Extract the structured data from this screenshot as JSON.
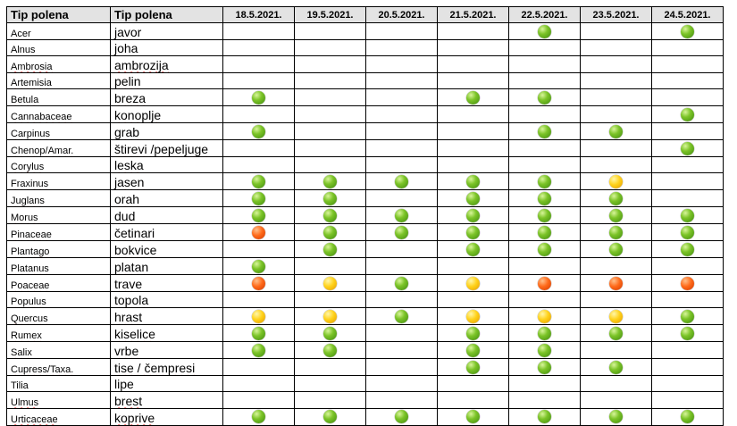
{
  "header": {
    "col_latin": "Tip polena",
    "col_local": "Tip polena",
    "dates": [
      "18.5.2021.",
      "19.5.2021.",
      "20.5.2021.",
      "21.5.2021.",
      "22.5.2021.",
      "23.5.2021.",
      "24.5.2021."
    ]
  },
  "levels": {
    "green": "#7cc428",
    "yellow": "#ffd21a",
    "orange": "#ff6a1a"
  },
  "rows": [
    {
      "latin": "Acer",
      "local": "javor",
      "levels": [
        "",
        "",
        "",
        "",
        "green",
        "",
        "green"
      ]
    },
    {
      "latin": "Alnus",
      "local": "joha",
      "levels": [
        "",
        "",
        "",
        "",
        "",
        "",
        ""
      ]
    },
    {
      "latin": "Ambrosia",
      "local": "ambrozija",
      "levels": [
        "",
        "",
        "",
        "",
        "",
        "",
        ""
      ]
    },
    {
      "latin": "Artemisia",
      "local": "pelin",
      "levels": [
        "",
        "",
        "",
        "",
        "",
        "",
        ""
      ]
    },
    {
      "latin": "Betula",
      "local": "breza",
      "levels": [
        "green",
        "",
        "",
        "green",
        "green",
        "",
        ""
      ]
    },
    {
      "latin": "Cannabaceae",
      "local": "konoplje",
      "levels": [
        "",
        "",
        "",
        "",
        "",
        "",
        "green"
      ]
    },
    {
      "latin": "Carpinus",
      "local": "grab",
      "levels": [
        "green",
        "",
        "",
        "",
        "green",
        "green",
        ""
      ]
    },
    {
      "latin": "Chenop/Amar.",
      "local": "štirevi /pepeljuge",
      "levels": [
        "",
        "",
        "",
        "",
        "",
        "",
        "green"
      ]
    },
    {
      "latin": "Corylus",
      "local": "leska",
      "levels": [
        "",
        "",
        "",
        "",
        "",
        "",
        ""
      ]
    },
    {
      "latin": "Fraxinus",
      "local": "jasen",
      "levels": [
        "green",
        "green",
        "green",
        "green",
        "green",
        "yellow",
        ""
      ]
    },
    {
      "latin": "Juglans",
      "local": "orah",
      "levels": [
        "green",
        "green",
        "",
        "green",
        "green",
        "green",
        ""
      ]
    },
    {
      "latin": "Morus",
      "local": "dud",
      "levels": [
        "green",
        "green",
        "green",
        "green",
        "green",
        "green",
        "green"
      ]
    },
    {
      "latin": "Pinaceae",
      "local": "četinari",
      "levels": [
        "orange",
        "green",
        "green",
        "green",
        "green",
        "green",
        "green"
      ]
    },
    {
      "latin": "Plantago",
      "local": "bokvice",
      "levels": [
        "",
        "green",
        "",
        "green",
        "green",
        "green",
        "green"
      ]
    },
    {
      "latin": "Platanus",
      "local": "platan",
      "levels": [
        "green",
        "",
        "",
        "",
        "",
        "",
        ""
      ]
    },
    {
      "latin": "Poaceae",
      "local": "trave",
      "levels": [
        "orange",
        "yellow",
        "green",
        "yellow",
        "orange",
        "orange",
        "orange"
      ]
    },
    {
      "latin": "Populus",
      "local": "topola",
      "levels": [
        "",
        "",
        "",
        "",
        "",
        "",
        ""
      ]
    },
    {
      "latin": "Quercus",
      "local": "hrast",
      "levels": [
        "yellow",
        "yellow",
        "green",
        "yellow",
        "yellow",
        "yellow",
        "green"
      ]
    },
    {
      "latin": "Rumex",
      "local": "kiselice",
      "levels": [
        "green",
        "green",
        "",
        "green",
        "green",
        "green",
        "green"
      ]
    },
    {
      "latin": "Salix",
      "local": "vrbe",
      "levels": [
        "green",
        "green",
        "",
        "green",
        "green",
        "",
        ""
      ]
    },
    {
      "latin": "Cupress/Taxa.",
      "local": "tise / čempresi",
      "levels": [
        "",
        "",
        "",
        "green",
        "green",
        "green",
        ""
      ]
    },
    {
      "latin": "Tilia",
      "local": "lipe",
      "levels": [
        "",
        "",
        "",
        "",
        "",
        "",
        ""
      ]
    },
    {
      "latin": "Ulmus",
      "local": "brest",
      "levels": [
        "",
        "",
        "",
        "",
        "",
        "",
        ""
      ]
    },
    {
      "latin": "Urticaceae",
      "local": "koprive",
      "levels": [
        "green",
        "green",
        "green",
        "green",
        "green",
        "green",
        "green"
      ]
    }
  ]
}
